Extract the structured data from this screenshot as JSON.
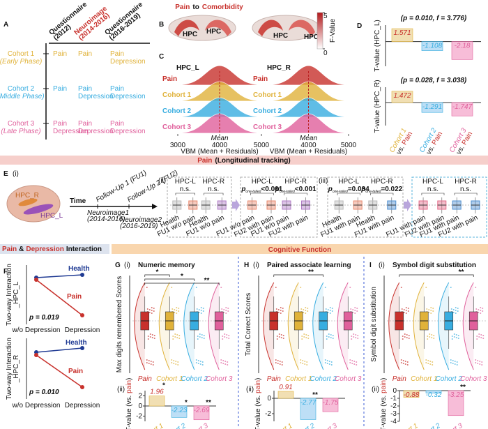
{
  "colors": {
    "pain": "#c8312c",
    "cohorts": [
      "#e0b23a",
      "#38ade0",
      "#e0609c"
    ],
    "fills": [
      "#f1dfb3",
      "#bddff6",
      "#f7bdd8"
    ],
    "health": "#1f3a93"
  },
  "title": [
    "Pain",
    "to",
    "Comorbidity"
  ],
  "panel_a": {
    "letter": "A",
    "headers": [
      [
        "Questionnaire",
        "(2012)"
      ],
      [
        "Neuroimage",
        "(2014-2016)"
      ],
      [
        "Questionnaire",
        "(2016-2019)"
      ]
    ],
    "rows": [
      {
        "name": "Cohort 1",
        "phase": "(Early Phase)",
        "cells": [
          [
            "Pain"
          ],
          [
            "Pain"
          ],
          [
            "Pain",
            "Depression"
          ]
        ]
      },
      {
        "name": "Cohort 2",
        "phase": "(Middle Phase)",
        "cells": [
          [
            "Pain"
          ],
          [
            "Pain",
            "Depression"
          ],
          [
            "Pain",
            "Depression"
          ]
        ]
      },
      {
        "name": "Cohort 3",
        "phase": "(Late Phase)",
        "cells": [
          [
            "Pain",
            "Depression"
          ],
          [
            "Pain",
            "Depression"
          ],
          [
            "Pain",
            "Depression"
          ]
        ]
      }
    ]
  },
  "panel_b": {
    "letter": "B",
    "labels": [
      "HPC",
      "HPC",
      "HPC",
      "HPC"
    ],
    "colorbar": {
      "label": "F-Value",
      "lim": [
        0,
        5
      ],
      "ticks": [
        5,
        0
      ]
    }
  },
  "panel_c": {
    "letter": "C",
    "plots": [
      {
        "title": "HPC_L",
        "xlim": [
          3000,
          5000
        ],
        "xticks": [
          3000,
          4000,
          5000
        ]
      },
      {
        "title": "HPC_R",
        "xlim": [
          3000,
          5000
        ],
        "xticks": [
          4000,
          5000
        ]
      }
    ],
    "rows": [
      "Pain",
      "Cohort 1",
      "Cohort 2",
      "Cohort 3"
    ],
    "mean_label": "Mean",
    "xlabel": "VBM (Mean + Residuals)"
  },
  "panel_d": {
    "letter": "D",
    "charts": [
      {
        "annotation": "(p = 0.010, f = 3.776)",
        "ylabel": "T-value (HPC_L)",
        "values": [
          1.571,
          -1.108,
          -2.18
        ],
        "ylim": [
          -3,
          2
        ]
      },
      {
        "annotation": "(p = 0.028, f = 3.038)",
        "ylabel": "T-value (HPC_R)",
        "values": [
          1.472,
          -1.291,
          -1.747
        ],
        "ylim": [
          -3,
          2
        ]
      }
    ],
    "categories": [
      "Cohort 1",
      "Cohort 2",
      "Cohort 3"
    ],
    "vs": "vs.",
    "ref": "Pain"
  },
  "banner_longitudinal": [
    "Pain",
    "(Longitudinal tracking)"
  ],
  "panel_e": {
    "letter": "E",
    "sub": "(i)",
    "brain_labels": [
      "HPC_R",
      "HPC_L"
    ],
    "time": "Time",
    "followups": [
      "Follow-Up 1 (FU1)",
      "Follow-Up 2 (FU2)"
    ],
    "neuroimages": [
      [
        "Neuroimage1",
        "(2014-2016)"
      ],
      [
        "Neuroimage2",
        "(2016-2019)"
      ]
    ],
    "subs": [
      "(ii)",
      "(iii)"
    ],
    "boxes": [
      {
        "regions": [
          "HPC-L",
          "HPC-R"
        ],
        "annotations": [
          {
            "text": "n.s."
          },
          {
            "text": "n.s."
          }
        ],
        "groups": [
          "Health",
          "FU1 w/o pain",
          "Health",
          "FU1 w/o pain"
        ]
      },
      {
        "regions": [
          "HPC-L",
          "HPC-R"
        ],
        "annotations": [
          {
            "p": "p",
            "sub": "one-tailed",
            "text": "<0.001"
          },
          {
            "p": "p",
            "sub": "one-tailed",
            "text": "<0.001"
          }
        ],
        "groups": [
          "FU1 w/o pain",
          "FU2 with pain",
          "FU1 w/o pain",
          "FU2 with pain"
        ]
      },
      {
        "regions": [
          "HPC-L",
          "HPC-R"
        ],
        "annotations": [
          {
            "p": "p",
            "sub": "one-tailed",
            "text": "=0.034"
          },
          {
            "p": "p",
            "sub": "one-tailed",
            "text": "=0.022"
          }
        ],
        "groups": [
          "Health",
          "FU1 with pain",
          "Health",
          "FU1 with pain"
        ]
      },
      {
        "regions": [
          "HPC-L",
          "HPC-R"
        ],
        "annotations": [
          {
            "text": "n.s."
          },
          {
            "text": "n.s."
          }
        ],
        "groups": [
          "FU1 with pain",
          "FU2 with pain",
          "FU1 with pain",
          "FU2 with pain"
        ]
      }
    ]
  },
  "banner_interaction": [
    "Pain",
    "&",
    "Depression",
    "Interaction"
  ],
  "banner_cognitive": "Cognitive Function",
  "panel_f": {
    "letter": "F",
    "plots": [
      {
        "ylabel": [
          "Two-way Interaction",
          "_HPC_L"
        ],
        "p": "p = 0.019"
      },
      {
        "ylabel": [
          "Two-way Interaction",
          "_HPC_R"
        ],
        "p": "p = 0.010"
      }
    ],
    "series": [
      "Health",
      "Pain"
    ],
    "xlabels": [
      "w/o Depression",
      "Depression"
    ]
  },
  "cognitive": [
    {
      "letter": "G",
      "subs": [
        "(i)",
        "(ii)"
      ],
      "title": "Numeric memory",
      "ylabel": "Max digits remembered Scores",
      "significance": [
        "*",
        "*",
        "**"
      ],
      "groups": [
        "Pain",
        "Cohort 1",
        "Cohort 2",
        "Cohort 3"
      ],
      "tvalues": {
        "ylabel": [
          "T-value (vs. ",
          "pain",
          ")"
        ],
        "values": [
          1.96,
          -2.23,
          -2.69
        ],
        "stars": [
          "*",
          "*",
          "**"
        ],
        "ylim": [
          -3,
          3
        ],
        "yticks": [
          2,
          0,
          -2
        ],
        "categories": [
          "Cohort 1",
          "Cohort 2",
          "Cohort 3"
        ]
      }
    },
    {
      "letter": "H",
      "subs": [
        "(i)",
        "(ii)"
      ],
      "title": "Paired associate learning",
      "ylabel": "Total Correct Scores",
      "significance": [
        "**"
      ],
      "groups": [
        "Pain",
        "Cohort 1",
        "Cohort 2",
        "Cohort 3"
      ],
      "tvalues": {
        "ylabel": [
          "T-value (vs. ",
          "pain",
          ")"
        ],
        "values": [
          0.91,
          -2.77,
          -1.75
        ],
        "stars": [
          null,
          "**",
          null
        ],
        "ylim": [
          -3,
          1
        ],
        "yticks": [
          0,
          -2
        ],
        "categories": [
          "Cohort 1",
          "Cohort 2",
          "Cohort 3"
        ]
      }
    },
    {
      "letter": "I",
      "subs": [
        "(i)",
        "(ii)"
      ],
      "title": "Symbol digit substitution",
      "ylabel": "Symbol digit substitution",
      "significance": [
        "**"
      ],
      "groups": [
        "Pain",
        "Cohort 1",
        "Cohort 2",
        "Cohort 3"
      ],
      "tvalues": {
        "ylabel": [
          "T-value (vs. ",
          "pain",
          ")"
        ],
        "values": [
          -0.88,
          -0.32,
          -3.25
        ],
        "stars": [
          null,
          null,
          "**"
        ],
        "ylim": [
          -4,
          0
        ],
        "yticks": [
          0,
          -1,
          -2,
          -3,
          -4
        ],
        "categories": [
          "Cohort 1",
          "Cohort 2",
          "Cohort 3"
        ]
      }
    }
  ]
}
